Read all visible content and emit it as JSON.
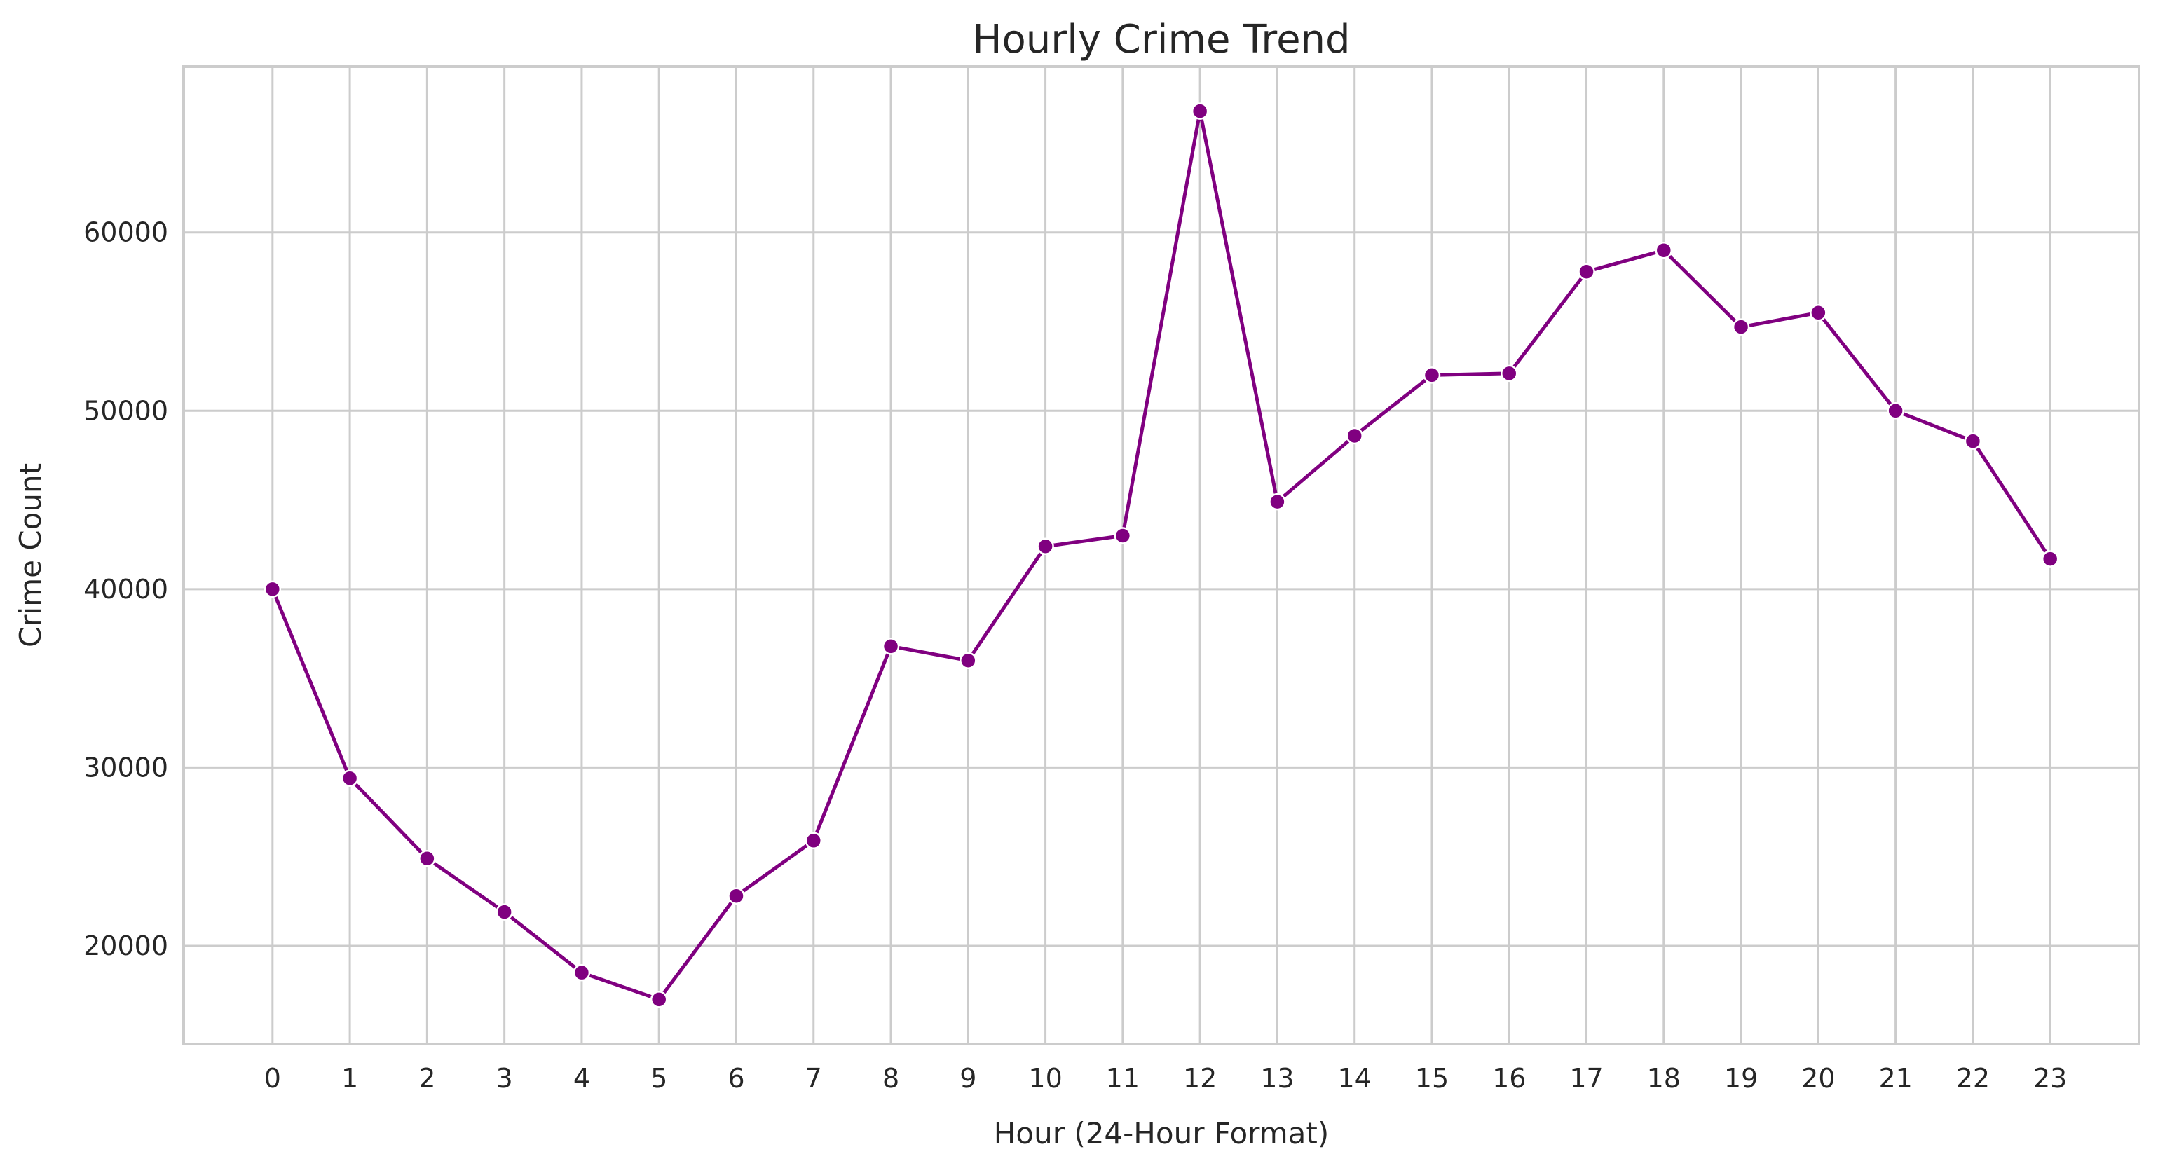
{
  "chart_data": {
    "type": "line",
    "title": "Hourly Crime Trend",
    "xlabel": "Hour (24-Hour Format)",
    "ylabel": "Crime Count",
    "x": [
      0,
      1,
      2,
      3,
      4,
      5,
      6,
      7,
      8,
      9,
      10,
      11,
      12,
      13,
      14,
      15,
      16,
      17,
      18,
      19,
      20,
      21,
      22,
      23
    ],
    "xticks": [
      "0",
      "1",
      "2",
      "3",
      "4",
      "5",
      "6",
      "7",
      "8",
      "9",
      "10",
      "11",
      "12",
      "13",
      "14",
      "15",
      "16",
      "17",
      "18",
      "19",
      "20",
      "21",
      "22",
      "23"
    ],
    "yticks": [
      20000,
      30000,
      40000,
      50000,
      60000
    ],
    "ytick_labels": [
      "20000",
      "30000",
      "40000",
      "50000",
      "60000"
    ],
    "xlim": [
      -1.15,
      24.15
    ],
    "ylim": [
      14500,
      69300
    ],
    "grid": true,
    "legend": "none",
    "series": [
      {
        "color": "#800080",
        "marker": "circle",
        "values": [
          40000,
          29400,
          24900,
          21900,
          18500,
          17000,
          22800,
          25900,
          36800,
          36000,
          42400,
          43000,
          66800,
          44900,
          48600,
          52000,
          52100,
          57800,
          59000,
          54700,
          55500,
          50000,
          48300,
          41700
        ]
      }
    ]
  }
}
